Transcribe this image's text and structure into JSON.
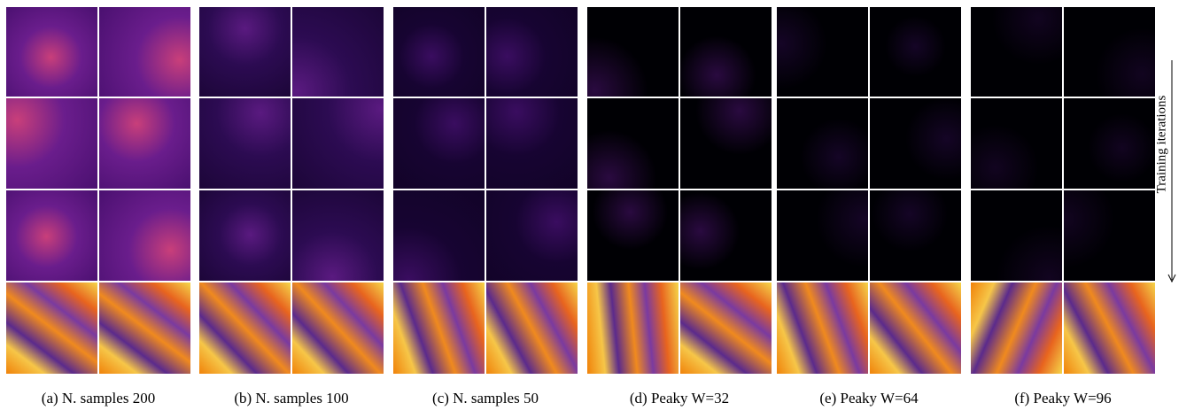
{
  "captions": [
    "(a) N. samples 200",
    "(b) N. samples 100",
    "(c) N. samples 50",
    "(d) Peaky W=32",
    "(e) Peaky W=64",
    "(f) Peaky W=96"
  ],
  "side_label": "Training iterations"
}
